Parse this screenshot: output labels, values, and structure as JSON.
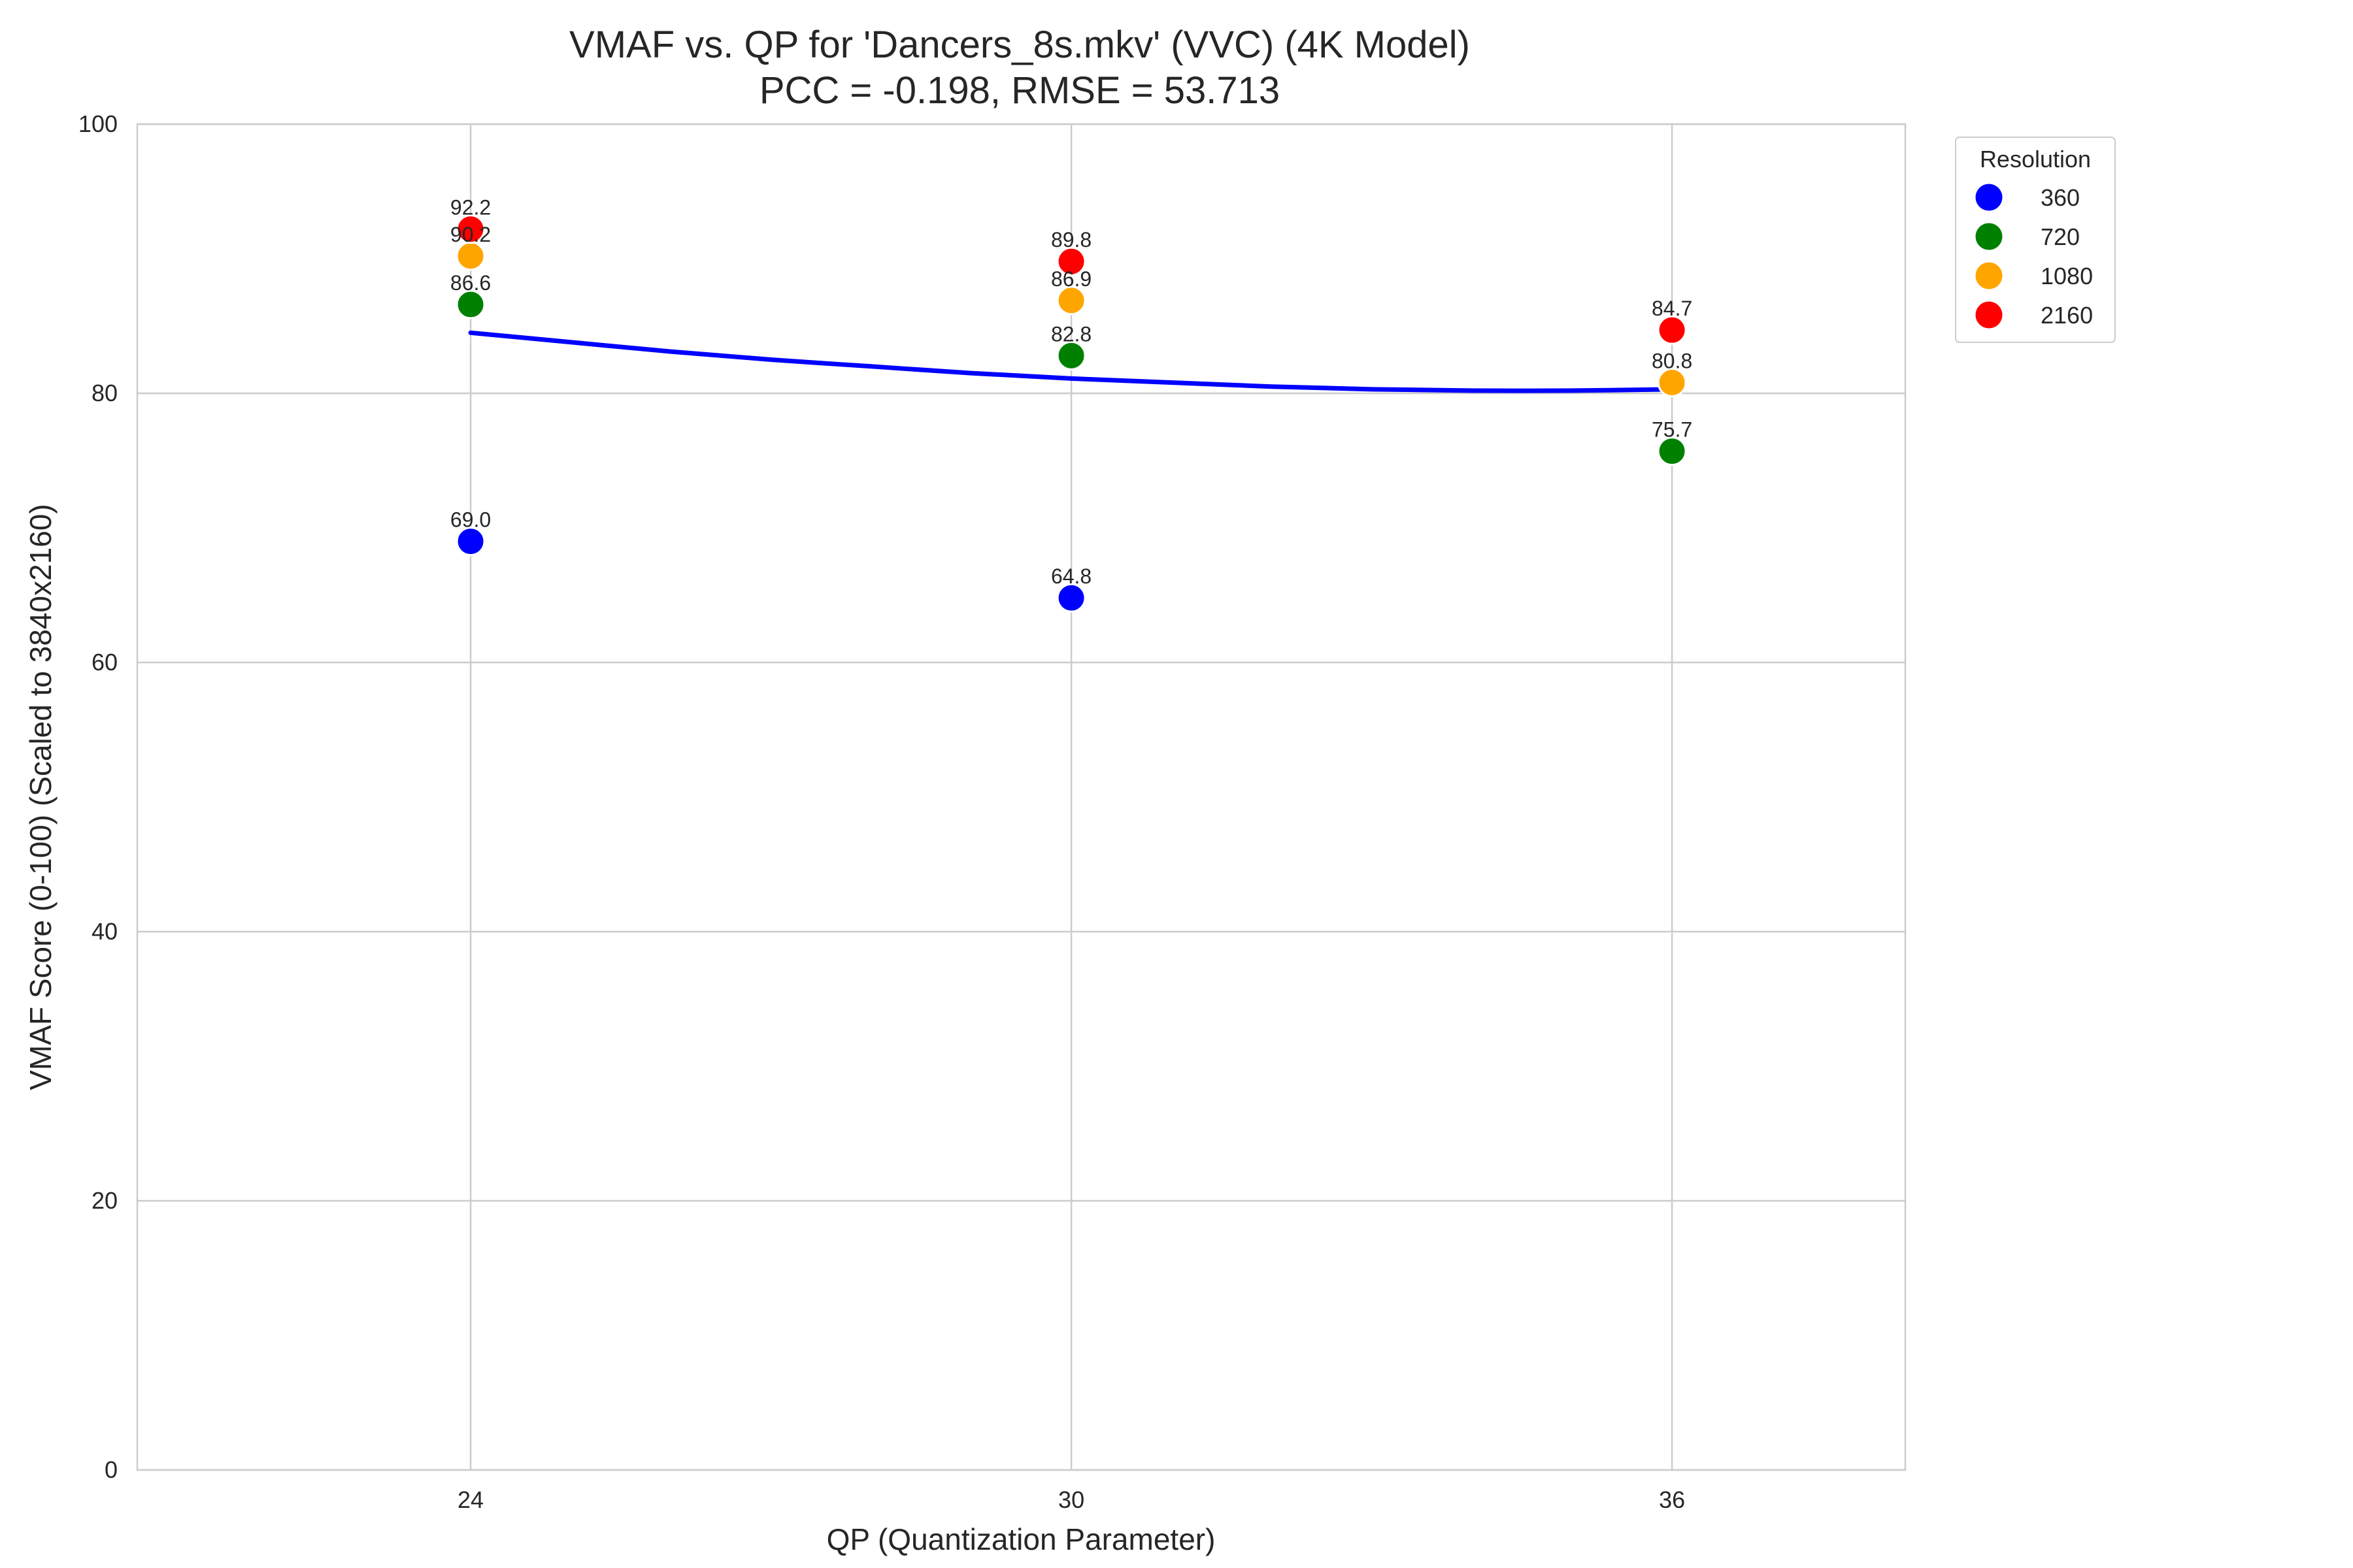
{
  "chart_data": {
    "type": "scatter",
    "title": "VMAF vs. QP for 'Dancers_8s.mkv' (VVC) (4K Model)",
    "subtitle": "PCC = -0.198, RMSE = 53.713",
    "xlabel": "QP (Quantization Parameter)",
    "ylabel": "VMAF Score (0-100) (Scaled to 3840x2160)",
    "xlim": [
      20.67,
      38.33
    ],
    "ylim": [
      0,
      100
    ],
    "x_ticks": [
      24,
      30,
      36
    ],
    "y_ticks": [
      0,
      20,
      40,
      60,
      80,
      100
    ],
    "grid": true,
    "legend": {
      "title": "Resolution",
      "placement": "upper-right-outside"
    },
    "series": [
      {
        "name": "360",
        "color": "#0000ff",
        "x": [
          24,
          30
        ],
        "y": [
          69.0,
          64.8
        ]
      },
      {
        "name": "720",
        "color": "#008000",
        "x": [
          24,
          30,
          36
        ],
        "y": [
          86.6,
          82.8,
          75.7
        ]
      },
      {
        "name": "1080",
        "color": "#ffa500",
        "x": [
          24,
          30,
          36
        ],
        "y": [
          90.2,
          86.9,
          80.8
        ]
      },
      {
        "name": "2160",
        "color": "#ff0000",
        "x": [
          24,
          30,
          36
        ],
        "y": [
          92.2,
          89.8,
          84.7
        ]
      }
    ],
    "fit_line": {
      "color": "#0000ff",
      "x": [
        24,
        25,
        26,
        27,
        28,
        29,
        30,
        31,
        32,
        33,
        34,
        35,
        36
      ],
      "y": [
        84.5,
        83.8,
        83.1,
        82.5,
        82.0,
        81.5,
        81.1,
        80.8,
        80.5,
        80.3,
        80.2,
        80.2,
        80.3
      ]
    }
  }
}
